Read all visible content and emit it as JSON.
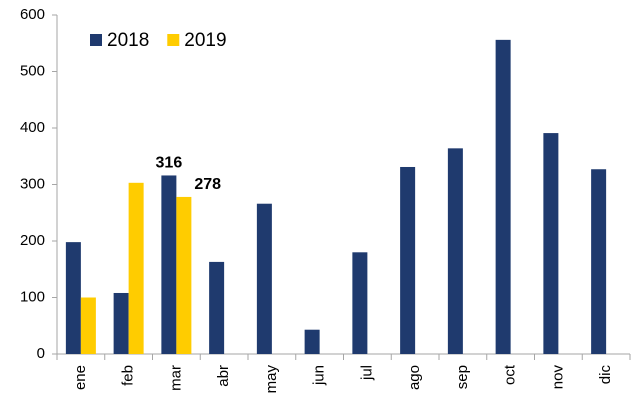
{
  "chart_data": {
    "type": "bar",
    "categories": [
      "ene",
      "feb",
      "mar",
      "abr",
      "may",
      "jun",
      "jul",
      "ago",
      "sep",
      "oct",
      "nov",
      "dic"
    ],
    "series": [
      {
        "name": "2018",
        "color": "#1f3a6e",
        "values": [
          198,
          108,
          316,
          163,
          266,
          43,
          180,
          331,
          364,
          556,
          391,
          327
        ]
      },
      {
        "name": "2019",
        "color": "#ffcc00",
        "values": [
          100,
          303,
          278,
          null,
          null,
          null,
          null,
          null,
          null,
          null,
          null,
          null
        ]
      }
    ],
    "data_labels": [
      "mar"
    ],
    "ylim": [
      0,
      600
    ],
    "yticks": [
      0,
      100,
      200,
      300,
      400,
      500,
      600
    ],
    "grid": false,
    "legend": "top-left"
  }
}
